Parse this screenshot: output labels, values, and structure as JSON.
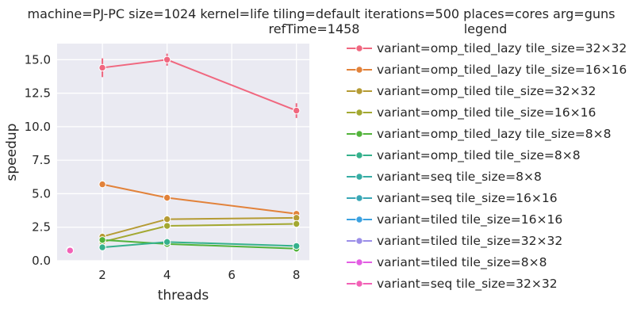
{
  "chart_data": {
    "type": "line",
    "title_line1": "machine=PJ-PC size=1024 kernel=life tiling=default iterations=500 places=cores arg=guns",
    "title_line2": "refTime=1458",
    "xlabel": "threads",
    "ylabel": "speedup",
    "xlim": [
      0.6,
      8.4
    ],
    "ylim": [
      0,
      16.2
    ],
    "xticks": [
      2,
      4,
      6,
      8
    ],
    "yticks": [
      0.0,
      2.5,
      5.0,
      7.5,
      10.0,
      12.5,
      15.0
    ],
    "ytick_labels": [
      "0.0",
      "2.5",
      "5.0",
      "7.5",
      "10.0",
      "12.5",
      "15.0"
    ],
    "xtick_labels": [
      "2",
      "4",
      "6",
      "8"
    ],
    "grid": true,
    "legend_title": "legend",
    "legend_placement": "right, outside plot",
    "series": [
      {
        "name": "variant=omp_tiled_lazy tile_size=32×32",
        "color": "#f0677f",
        "x": [
          2,
          4,
          8
        ],
        "y": [
          14.4,
          15.0,
          11.2
        ],
        "err": [
          0.7,
          0.45,
          0.55
        ]
      },
      {
        "name": "variant=omp_tiled_lazy tile_size=16×16",
        "color": "#e2823a",
        "x": [
          2,
          4,
          8
        ],
        "y": [
          5.7,
          4.7,
          3.5
        ],
        "err": [
          0,
          0,
          0
        ]
      },
      {
        "name": "variant=omp_tiled tile_size=32×32",
        "color": "#b59b34",
        "x": [
          2,
          4,
          8
        ],
        "y": [
          1.8,
          3.1,
          3.2
        ],
        "err": [
          0,
          0,
          0
        ]
      },
      {
        "name": "variant=omp_tiled tile_size=16×16",
        "color": "#a3a831",
        "x": [
          2,
          4,
          8
        ],
        "y": [
          1.4,
          2.6,
          2.75
        ],
        "err": [
          0,
          0,
          0
        ]
      },
      {
        "name": "variant=omp_tiled_lazy tile_size=8×8",
        "color": "#52b33a",
        "x": [
          2,
          4,
          8
        ],
        "y": [
          1.55,
          1.25,
          0.9
        ],
        "err": [
          0,
          0,
          0
        ]
      },
      {
        "name": "variant=omp_tiled tile_size=8×8",
        "color": "#35b18c",
        "x": [
          2,
          4,
          8
        ],
        "y": [
          1.0,
          1.4,
          1.1
        ],
        "err": [
          0,
          0,
          0
        ]
      },
      {
        "name": "variant=seq tile_size=8×8",
        "color": "#36ada4",
        "x": [
          1
        ],
        "y": [
          0.82
        ],
        "err": [
          0.12
        ]
      },
      {
        "name": "variant=seq tile_size=16×16",
        "color": "#39a7b6",
        "x": [
          1
        ],
        "y": [
          0.8
        ],
        "err": [
          0.1
        ]
      },
      {
        "name": "variant=tiled tile_size=16×16",
        "color": "#3ba1e0",
        "x": [
          1
        ],
        "y": [
          0.8
        ],
        "err": [
          0.1
        ]
      },
      {
        "name": "variant=tiled tile_size=32×32",
        "color": "#9b8ee8",
        "x": [
          1
        ],
        "y": [
          0.78
        ],
        "err": [
          0.1
        ]
      },
      {
        "name": "variant=tiled tile_size=8×8",
        "color": "#e35ee3",
        "x": [
          1
        ],
        "y": [
          0.77
        ],
        "err": [
          0.1
        ]
      },
      {
        "name": "variant=seq tile_size=32×32",
        "color": "#f261b6",
        "x": [
          1
        ],
        "y": [
          0.76
        ],
        "err": [
          0.1
        ]
      }
    ]
  }
}
